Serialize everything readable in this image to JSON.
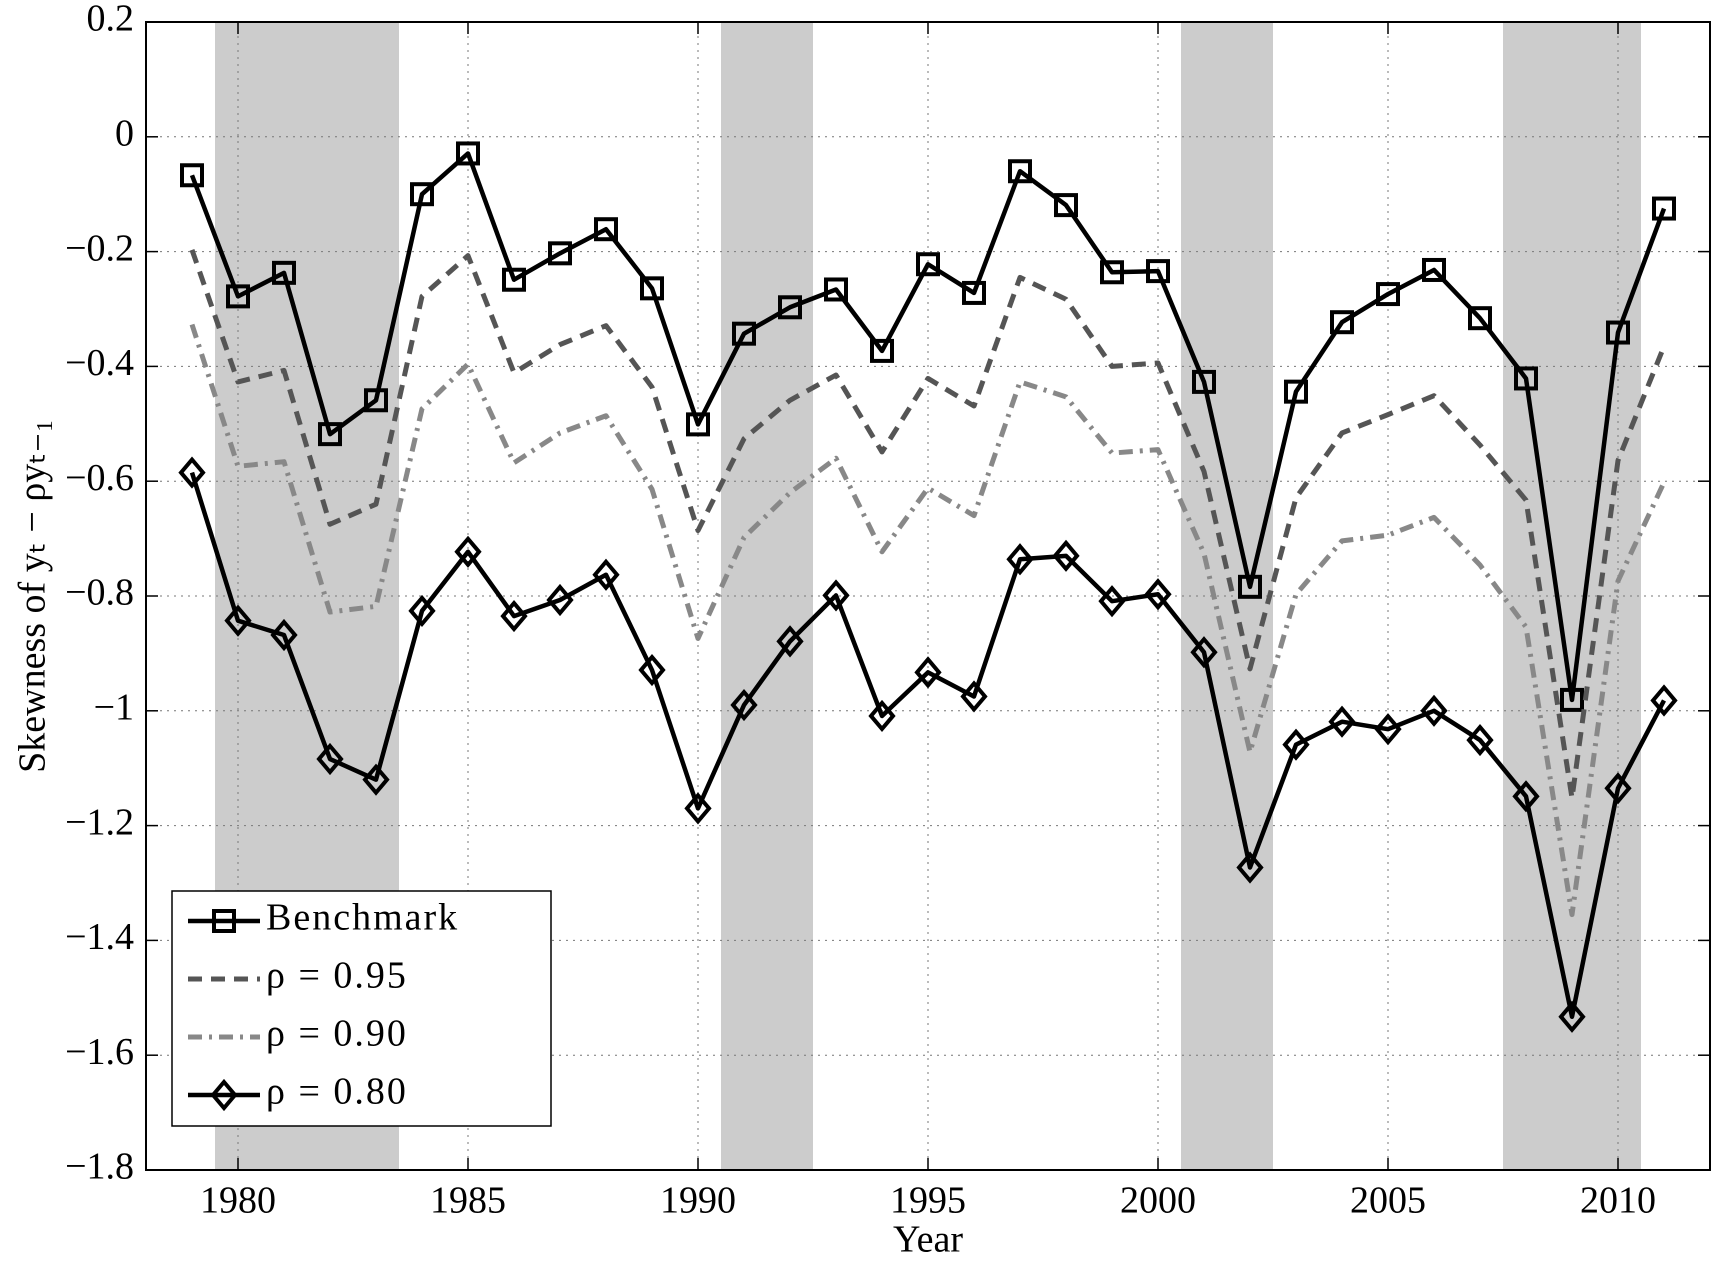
{
  "chart_data": {
    "type": "line",
    "xlabel": "Year",
    "ylabel": "Skewness of yₜ − ρyₜ₋₁",
    "x": [
      1979,
      1980,
      1981,
      1982,
      1983,
      1984,
      1985,
      1986,
      1987,
      1988,
      1989,
      1990,
      1991,
      1992,
      1993,
      1994,
      1995,
      1996,
      1997,
      1998,
      1999,
      2000,
      2001,
      2002,
      2003,
      2004,
      2005,
      2006,
      2007,
      2008,
      2009,
      2010,
      2011
    ],
    "series": [
      {
        "name": "Benchmark",
        "color": "#000000",
        "line_style": "solid",
        "marker": "square",
        "values": [
          -0.067,
          -0.278,
          -0.237,
          -0.518,
          -0.459,
          -0.1,
          -0.029,
          -0.249,
          -0.203,
          -0.161,
          -0.264,
          -0.501,
          -0.343,
          -0.297,
          -0.266,
          -0.373,
          -0.222,
          -0.272,
          -0.06,
          -0.119,
          -0.236,
          -0.234,
          -0.427,
          -0.784,
          -0.444,
          -0.323,
          -0.274,
          -0.232,
          -0.316,
          -0.421,
          -0.981,
          -0.341,
          -0.125
        ]
      },
      {
        "name": "ρ = 0.95",
        "color": "#555555",
        "line_style": "dashed",
        "marker": null,
        "values": [
          -0.197,
          -0.427,
          -0.407,
          -0.675,
          -0.64,
          -0.278,
          -0.207,
          -0.411,
          -0.362,
          -0.329,
          -0.436,
          -0.686,
          -0.526,
          -0.459,
          -0.415,
          -0.549,
          -0.421,
          -0.469,
          -0.245,
          -0.283,
          -0.4,
          -0.394,
          -0.583,
          -0.927,
          -0.629,
          -0.516,
          -0.484,
          -0.451,
          -0.537,
          -0.633,
          -1.152,
          -0.564,
          -0.365
        ]
      },
      {
        "name": "ρ = 0.90",
        "color": "#888888",
        "line_style": "dashdot",
        "marker": null,
        "values": [
          -0.327,
          -0.574,
          -0.566,
          -0.828,
          -0.818,
          -0.474,
          -0.396,
          -0.568,
          -0.516,
          -0.486,
          -0.614,
          -0.874,
          -0.698,
          -0.62,
          -0.56,
          -0.723,
          -0.612,
          -0.66,
          -0.427,
          -0.453,
          -0.551,
          -0.545,
          -0.726,
          -1.072,
          -0.797,
          -0.704,
          -0.694,
          -0.663,
          -0.746,
          -0.854,
          -1.355,
          -0.774,
          -0.602
        ]
      },
      {
        "name": "ρ = 0.80",
        "color": "#000000",
        "line_style": "solid",
        "marker": "diamond",
        "values": [
          -0.585,
          -0.843,
          -0.868,
          -1.084,
          -1.12,
          -0.826,
          -0.723,
          -0.835,
          -0.807,
          -0.763,
          -0.929,
          -1.17,
          -0.99,
          -0.879,
          -0.799,
          -1.009,
          -0.933,
          -0.975,
          -0.736,
          -0.73,
          -0.809,
          -0.797,
          -0.898,
          -1.273,
          -1.059,
          -1.019,
          -1.032,
          -1.0,
          -1.051,
          -1.149,
          -1.533,
          -1.135,
          -0.982
        ]
      }
    ],
    "shaded_regions": [
      [
        1979.5,
        1983.5
      ],
      [
        1990.5,
        1992.5
      ],
      [
        2000.5,
        2002.5
      ],
      [
        2007.5,
        2010.5
      ]
    ],
    "shade_color": "#cccccc",
    "xlim": [
      1978,
      2012
    ],
    "xticks": [
      1980,
      1985,
      1990,
      1995,
      2000,
      2005,
      2010
    ],
    "ylim": [
      -1.8,
      0.2
    ],
    "yticks": [
      {
        "value": -1.8,
        "label": "−1.8"
      },
      {
        "value": -1.6,
        "label": "−1.6"
      },
      {
        "value": -1.4,
        "label": "−1.4"
      },
      {
        "value": -1.2,
        "label": "−1.2"
      },
      {
        "value": -1,
        "label": "−1"
      },
      {
        "value": -0.8,
        "label": "−0.8"
      },
      {
        "value": -0.6,
        "label": "−0.6"
      },
      {
        "value": -0.4,
        "label": "−0.4"
      },
      {
        "value": -0.2,
        "label": "−0.2"
      },
      0,
      0.2
    ],
    "grid": true,
    "legend": "lower left"
  }
}
